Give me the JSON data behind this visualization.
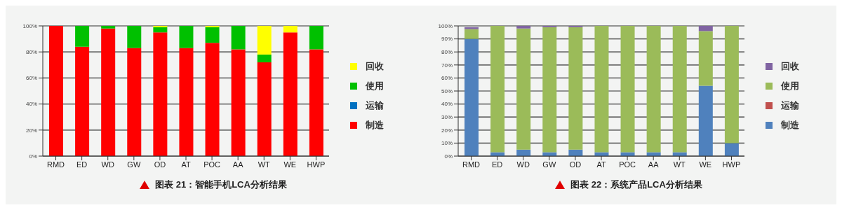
{
  "chart_data": [
    {
      "type": "bar",
      "title": "图表 21：智能手机LCA分析结果",
      "categories": [
        "RMD",
        "ED",
        "WD",
        "GW",
        "OD",
        "AT",
        "POC",
        "AA",
        "WT",
        "WE",
        "HWP"
      ],
      "stacked": true,
      "legend": "right",
      "grid": "y",
      "ylim": [
        0,
        100
      ],
      "yticks": [
        {
          "value": 0,
          "label": "0%"
        },
        {
          "value": 20,
          "label": "20%"
        },
        {
          "value": 40,
          "label": "40%"
        },
        {
          "value": 60,
          "label": "60%"
        },
        {
          "value": 80,
          "label": "80%"
        },
        {
          "value": 100,
          "label": "100%"
        }
      ],
      "series": [
        {
          "name": "制造",
          "color": "#ff0000",
          "values": [
            100,
            84,
            98,
            83,
            95,
            83,
            87,
            82,
            72,
            95,
            82
          ]
        },
        {
          "name": "运输",
          "color": "#0070c0",
          "values": [
            0,
            0,
            0,
            0,
            0,
            0,
            0,
            0,
            0,
            0,
            0
          ]
        },
        {
          "name": "使用",
          "color": "#00c000",
          "values": [
            0,
            16,
            2,
            17,
            4,
            17,
            12,
            18,
            6,
            0,
            18
          ]
        },
        {
          "name": "回收",
          "color": "#ffff00",
          "values": [
            0,
            0,
            0,
            0,
            1,
            0,
            1,
            0,
            22,
            5,
            0
          ]
        }
      ]
    },
    {
      "type": "bar",
      "title": "图表 22：系统产品LCA分析结果",
      "categories": [
        "RMD",
        "ED",
        "WD",
        "GW",
        "OD",
        "AT",
        "POC",
        "AA",
        "WT",
        "WE",
        "HWP"
      ],
      "stacked": true,
      "legend": "right",
      "grid": "y",
      "ylim": [
        0,
        100
      ],
      "yticks": [
        {
          "value": 0,
          "label": "0%"
        },
        {
          "value": 10,
          "label": "10%"
        },
        {
          "value": 20,
          "label": "20%"
        },
        {
          "value": 30,
          "label": "30%"
        },
        {
          "value": 40,
          "label": "40%"
        },
        {
          "value": 50,
          "label": "50%"
        },
        {
          "value": 60,
          "label": "60%"
        },
        {
          "value": 70,
          "label": "70%"
        },
        {
          "value": 80,
          "label": "80%"
        },
        {
          "value": 90,
          "label": "90%"
        },
        {
          "value": 100,
          "label": "100%"
        }
      ],
      "series": [
        {
          "name": "制造",
          "color": "#4f81bd",
          "values": [
            90,
            3,
            5,
            3,
            5,
            3,
            3,
            3,
            3,
            54,
            10
          ]
        },
        {
          "name": "运输",
          "color": "#c0504d",
          "values": [
            0,
            0,
            0,
            0,
            0,
            0,
            0,
            0,
            0,
            0,
            0
          ]
        },
        {
          "name": "使用",
          "color": "#9bbb59",
          "values": [
            7.5,
            97,
            93,
            96,
            94,
            97,
            97,
            97,
            97,
            42,
            90
          ]
        },
        {
          "name": "回收",
          "color": "#8064a2",
          "values": [
            1.5,
            0,
            2,
            1,
            1,
            0,
            0,
            0,
            0,
            4,
            0
          ]
        }
      ]
    }
  ]
}
